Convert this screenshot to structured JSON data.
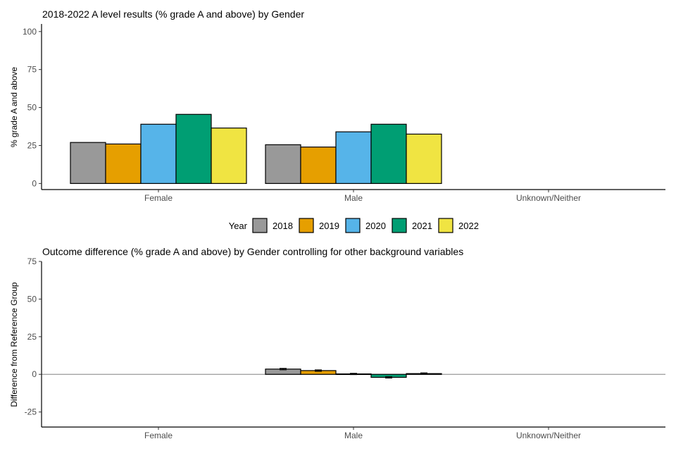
{
  "chart_data": [
    {
      "type": "bar",
      "title": "2018-2022 A level results (% grade A and above) by Gender",
      "xlabel": "",
      "ylabel": "% grade A and above",
      "categories": [
        "Female",
        "Male",
        "Unknown/Neither"
      ],
      "ylim": [
        -4,
        105
      ],
      "yticks": [
        0,
        25,
        50,
        75,
        100
      ],
      "series": [
        {
          "name": "2018",
          "color": "#999999",
          "values": [
            27,
            25.5,
            null
          ]
        },
        {
          "name": "2019",
          "color": "#E69F00",
          "values": [
            26,
            24,
            null
          ]
        },
        {
          "name": "2020",
          "color": "#56B4E9",
          "values": [
            39,
            34,
            null
          ]
        },
        {
          "name": "2021",
          "color": "#009E73",
          "values": [
            45.5,
            39,
            null
          ]
        },
        {
          "name": "2022",
          "color": "#F0E442",
          "values": [
            36.5,
            32.5,
            null
          ]
        }
      ]
    },
    {
      "type": "bar",
      "title": "Outcome difference (% grade A and above) by Gender controlling for other background variables",
      "xlabel": "",
      "ylabel": "Difference from Reference Group",
      "categories": [
        "Female",
        "Male",
        "Unknown/Neither"
      ],
      "ylim": [
        -35,
        75
      ],
      "yticks": [
        -25,
        0,
        25,
        50,
        75
      ],
      "reference_line": 0,
      "series": [
        {
          "name": "2018",
          "color": "#999999",
          "values": [
            null,
            3.5,
            null
          ],
          "ci_low": [
            null,
            3.0,
            null
          ],
          "ci_high": [
            null,
            4.0,
            null
          ]
        },
        {
          "name": "2019",
          "color": "#E69F00",
          "values": [
            null,
            2.5,
            null
          ],
          "ci_low": [
            null,
            2.0,
            null
          ],
          "ci_high": [
            null,
            3.0,
            null
          ]
        },
        {
          "name": "2020",
          "color": "#56B4E9",
          "values": [
            null,
            0.3,
            null
          ],
          "ci_low": [
            null,
            -0.2,
            null
          ],
          "ci_high": [
            null,
            0.7,
            null
          ]
        },
        {
          "name": "2021",
          "color": "#009E73",
          "values": [
            null,
            -2.0,
            null
          ],
          "ci_low": [
            null,
            -2.5,
            null
          ],
          "ci_high": [
            null,
            -1.5,
            null
          ]
        },
        {
          "name": "2022",
          "color": "#F0E442",
          "values": [
            null,
            0.5,
            null
          ],
          "ci_low": [
            null,
            0.0,
            null
          ],
          "ci_high": [
            null,
            1.0,
            null
          ]
        }
      ]
    }
  ],
  "legend": {
    "title": "Year",
    "items": [
      {
        "label": "2018",
        "color": "#999999"
      },
      {
        "label": "2019",
        "color": "#E69F00"
      },
      {
        "label": "2020",
        "color": "#56B4E9"
      },
      {
        "label": "2021",
        "color": "#009E73"
      },
      {
        "label": "2022",
        "color": "#F0E442"
      }
    ]
  }
}
